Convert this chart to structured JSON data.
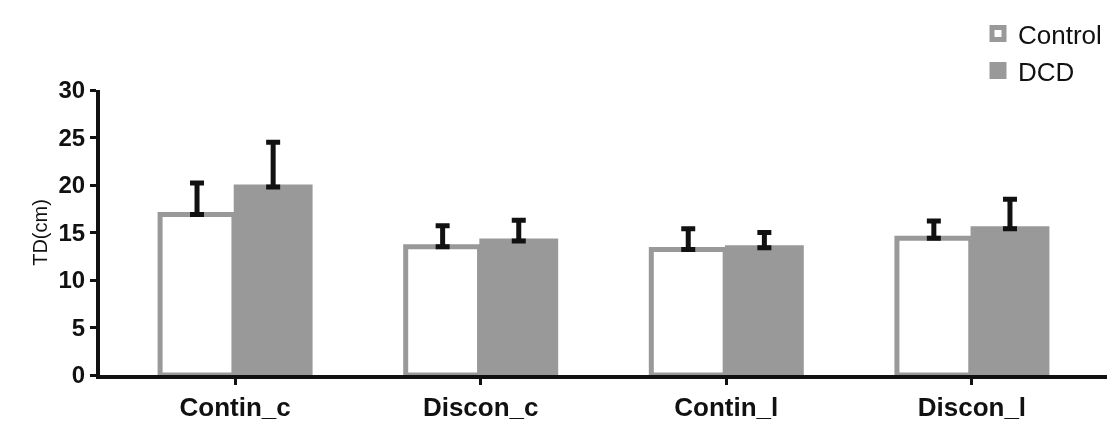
{
  "chart_data": {
    "type": "bar",
    "ylabel": "TD(cm)",
    "categories": [
      "Contin_c",
      "Discon_c",
      "Contin_l",
      "Discon_l"
    ],
    "series": [
      {
        "name": "Control",
        "color": "#ffffff",
        "values": [
          16.9,
          13.5,
          13.2,
          14.4
        ],
        "errors": [
          [
            16.9,
            20.2
          ],
          [
            13.5,
            15.7
          ],
          [
            13.2,
            15.4
          ],
          [
            14.4,
            16.2
          ]
        ]
      },
      {
        "name": "DCD",
        "color": "#999999",
        "values": [
          19.8,
          14.1,
          13.4,
          15.4
        ],
        "errors": [
          [
            19.8,
            24.5
          ],
          [
            14.1,
            16.3
          ],
          [
            13.4,
            15.0
          ],
          [
            15.4,
            18.5
          ]
        ]
      }
    ],
    "ylim": [
      0,
      30
    ],
    "yticks": [
      0,
      5,
      10,
      15,
      20,
      25,
      30
    ],
    "grid": false,
    "legend": "top right"
  }
}
